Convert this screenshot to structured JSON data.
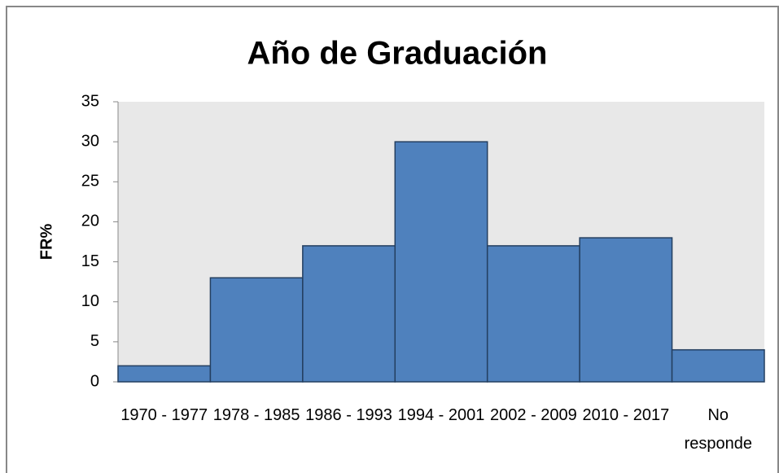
{
  "chart_data": {
    "type": "bar",
    "title": "Año de Graduación",
    "y_label": "FR%",
    "categories": [
      "1970 - 1977",
      "1978 - 1985",
      "1986 - 1993",
      "1994 - 2001",
      "2002 - 2009",
      "2010 - 2017",
      "No responde"
    ],
    "values": [
      2,
      13,
      17,
      30,
      17,
      18,
      4
    ],
    "color": "#4f81bd",
    "ylim": [
      0,
      35
    ],
    "yticks": [
      0,
      5,
      10,
      15,
      20,
      25,
      30,
      35
    ],
    "grid": false
  }
}
